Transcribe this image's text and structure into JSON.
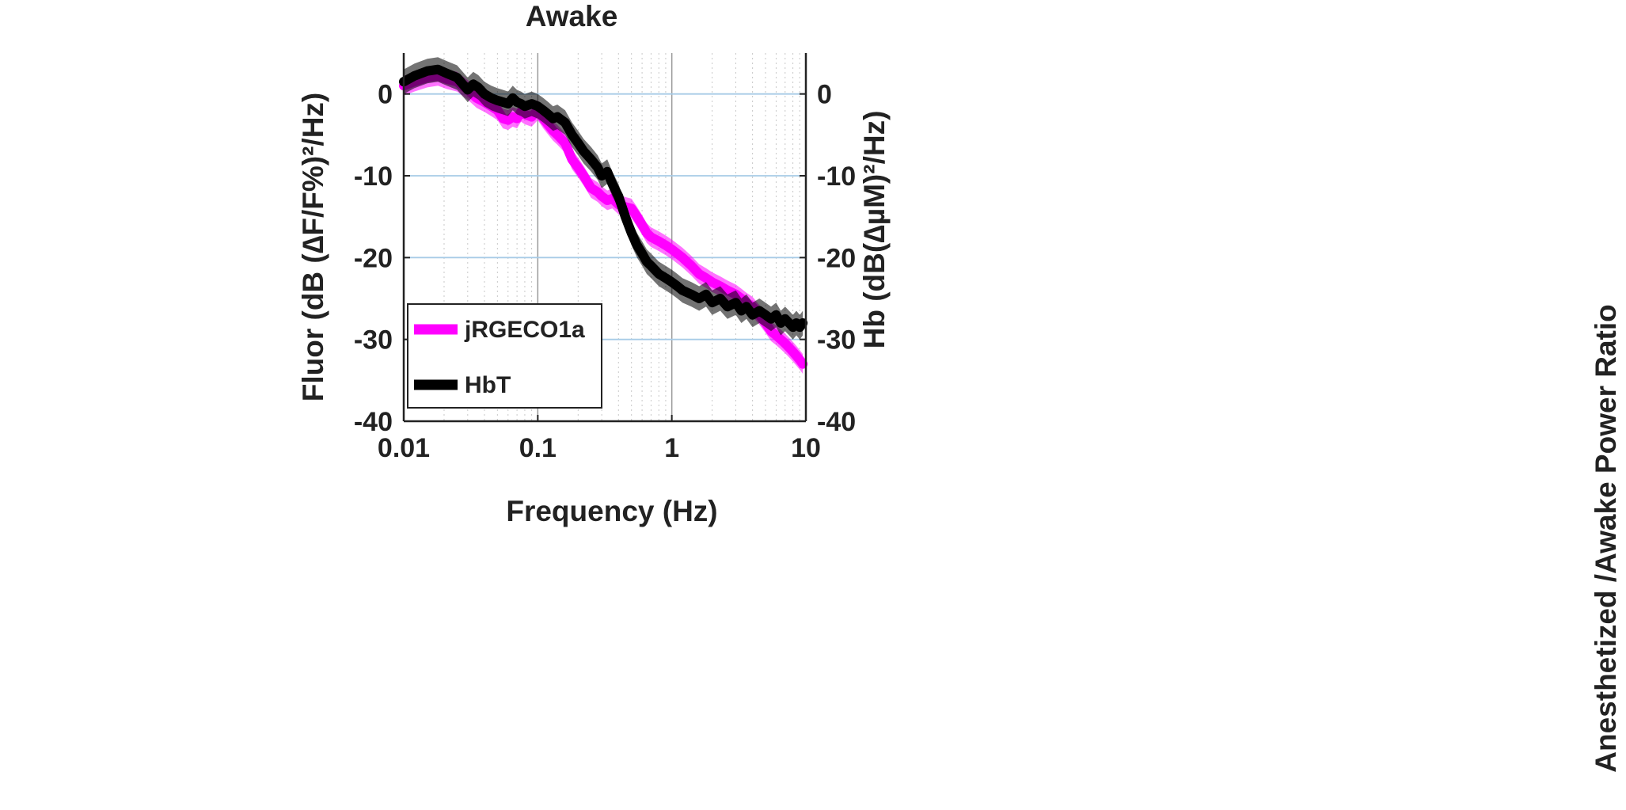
{
  "chart_data": {
    "type": "line",
    "title": "Awake",
    "xlabel": "Frequency (Hz)",
    "ylabel": "Fluor (dB (∆F/F%)²/Hz)",
    "ylabel_right": "Hb (dB(∆µM)²/Hz)",
    "x_scale": "log",
    "xlim": [
      0.01,
      10
    ],
    "ylim": [
      -40,
      5
    ],
    "ylim_right": [
      -40,
      5
    ],
    "xticks": [
      0.01,
      0.1,
      1,
      10
    ],
    "xtick_labels": [
      "0.01",
      "0.1",
      "1",
      "10"
    ],
    "yticks": [
      -40,
      -30,
      -20,
      -10,
      0
    ],
    "ytick_labels": [
      "-40",
      "-30",
      "-20",
      "-10",
      "0"
    ],
    "yticks_right": [
      -40,
      -30,
      -20,
      -10,
      0
    ],
    "ytick_labels_right": [
      "-40",
      "-30",
      "-20",
      "-10",
      "0"
    ],
    "grid": true,
    "legend_position": "bottom-left",
    "colors": {
      "jrgeco1a": "#ff00ff",
      "hbt": "#000000",
      "grid_major": "#a7cbe6"
    },
    "series": [
      {
        "name": "jRGECO1a",
        "color": "#ff00ff",
        "x": [
          0.01,
          0.012,
          0.015,
          0.018,
          0.021,
          0.025,
          0.03,
          0.035,
          0.04,
          0.045,
          0.05,
          0.055,
          0.06,
          0.065,
          0.07,
          0.075,
          0.08,
          0.09,
          0.1,
          0.11,
          0.12,
          0.13,
          0.14,
          0.16,
          0.18,
          0.2,
          0.22,
          0.25,
          0.28,
          0.3,
          0.33,
          0.36,
          0.4,
          0.45,
          0.5,
          0.55,
          0.6,
          0.65,
          0.7,
          0.8,
          0.9,
          1.0,
          1.2,
          1.4,
          1.6,
          1.8,
          2.0,
          2.3,
          2.6,
          3.0,
          3.3,
          3.6,
          4.0,
          4.5,
          5.0,
          5.5,
          6.0,
          6.5,
          7.0,
          7.5,
          8.0,
          8.5,
          9.0,
          9.5
        ],
        "y": [
          1.0,
          1.5,
          2.0,
          2.2,
          1.8,
          1.5,
          0.5,
          -0.5,
          -1.0,
          -1.5,
          -2.0,
          -3.0,
          -3.2,
          -2.8,
          -3.0,
          -2.2,
          -2.5,
          -2.8,
          -2.0,
          -3.0,
          -3.8,
          -4.5,
          -5.0,
          -6.0,
          -8.0,
          -9.0,
          -10.0,
          -11.5,
          -12.0,
          -12.5,
          -13.0,
          -12.8,
          -13.5,
          -13.8,
          -14.0,
          -15.0,
          -16.0,
          -17.0,
          -17.5,
          -18.0,
          -18.5,
          -19.0,
          -20.0,
          -21.0,
          -22.0,
          -22.5,
          -23.0,
          -23.5,
          -24.0,
          -24.5,
          -25.0,
          -25.5,
          -26.0,
          -27.0,
          -28.0,
          -29.0,
          -29.5,
          -30.0,
          -30.5,
          -31.0,
          -31.5,
          -32.0,
          -32.5,
          -33.0
        ],
        "band": 1.2
      },
      {
        "name": "HbT",
        "color": "#000000",
        "x": [
          0.01,
          0.012,
          0.015,
          0.018,
          0.021,
          0.025,
          0.03,
          0.033,
          0.036,
          0.04,
          0.045,
          0.05,
          0.055,
          0.06,
          0.065,
          0.07,
          0.075,
          0.08,
          0.09,
          0.1,
          0.11,
          0.12,
          0.13,
          0.14,
          0.16,
          0.18,
          0.2,
          0.22,
          0.25,
          0.28,
          0.3,
          0.33,
          0.36,
          0.4,
          0.45,
          0.5,
          0.55,
          0.6,
          0.65,
          0.7,
          0.8,
          0.9,
          1.0,
          1.1,
          1.2,
          1.4,
          1.6,
          1.8,
          2.0,
          2.3,
          2.6,
          3.0,
          3.3,
          3.6,
          4.0,
          4.5,
          5.0,
          5.5,
          6.0,
          6.5,
          7.0,
          7.5,
          8.0,
          8.5,
          9.0,
          9.5
        ],
        "y": [
          1.5,
          2.2,
          2.8,
          3.0,
          2.5,
          2.0,
          0.5,
          1.2,
          0.8,
          0.0,
          -0.5,
          -0.8,
          -1.0,
          -1.2,
          -0.5,
          -1.0,
          -1.2,
          -1.5,
          -1.2,
          -1.5,
          -2.0,
          -2.5,
          -3.0,
          -2.8,
          -3.5,
          -5.0,
          -6.0,
          -7.0,
          -8.0,
          -9.0,
          -10.0,
          -9.5,
          -11.0,
          -12.5,
          -15.0,
          -17.0,
          -18.5,
          -19.5,
          -20.5,
          -21.0,
          -22.0,
          -22.5,
          -23.0,
          -23.5,
          -24.0,
          -24.5,
          -25.0,
          -24.5,
          -25.5,
          -25.0,
          -26.0,
          -25.5,
          -26.5,
          -26.0,
          -27.0,
          -26.5,
          -27.0,
          -27.5,
          -27.0,
          -28.0,
          -27.5,
          -28.0,
          -28.5,
          -28.0,
          -28.5,
          -28.0
        ],
        "band": 1.5
      }
    ]
  },
  "side_panel": {
    "ylabel": "Anesthetized /Awake Power Ratio"
  }
}
